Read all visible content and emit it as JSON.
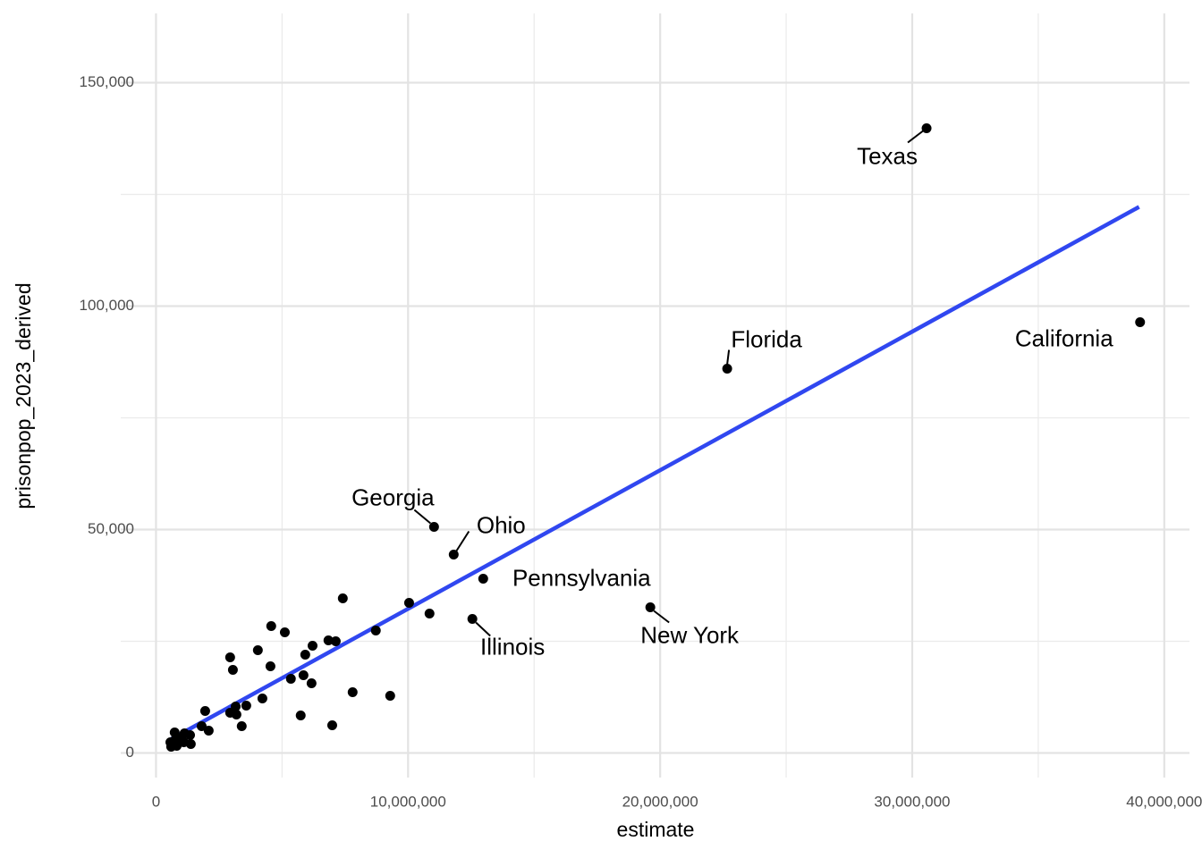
{
  "chart_data": {
    "type": "scatter",
    "x_label": "estimate",
    "y_label": "prisonpop_2023_derived",
    "color": "#000000",
    "x": [
      30570000,
      39040000,
      22660000,
      11030000,
      11810000,
      12980000,
      12550000,
      19610000,
      7410000,
      10040000,
      10850000,
      4570000,
      5110000,
      8720000,
      6840000,
      7130000,
      6210000,
      4040000,
      5920000,
      2940000,
      4540000,
      3050000,
      5850000,
      5350000,
      6170000,
      7800000,
      9290000,
      4220000,
      3580000,
      3160000,
      1950000,
      2940000,
      3190000,
      5740000,
      1810000,
      3400000,
      6990000,
      2090000,
      740000,
      1130000,
      1350000,
      990000,
      740000,
      570000,
      1100000,
      1380000,
      820000,
      600000,
      670000
    ],
    "y": [
      139800,
      96400,
      86000,
      50600,
      44400,
      39000,
      30000,
      32600,
      34600,
      33600,
      31200,
      28400,
      27000,
      27400,
      25200,
      25000,
      24000,
      23000,
      22000,
      21400,
      19400,
      18600,
      17400,
      16600,
      15600,
      13600,
      12800,
      12200,
      10600,
      10400,
      9400,
      9000,
      8600,
      8400,
      6000,
      6000,
      6200,
      5000,
      4600,
      4400,
      4000,
      3400,
      2800,
      2400,
      2400,
      2000,
      1600,
      1400,
      2000
    ],
    "labels": [
      "Texas",
      "California",
      "Florida",
      "Georgia",
      "Ohio",
      "Pennsylvania",
      "Illinois",
      "New York",
      null,
      null,
      null,
      null,
      null,
      null,
      null,
      null,
      null,
      null,
      null,
      null,
      null,
      null,
      null,
      null,
      null,
      null,
      null,
      null,
      null,
      null,
      null,
      null,
      null,
      null,
      null,
      null,
      null,
      null,
      null,
      null,
      null,
      null,
      null,
      null,
      null,
      null,
      null,
      null,
      null
    ],
    "trend": {
      "color": "#3047f0",
      "x": [
        500000,
        39000000
      ],
      "y": [
        2800,
        122200
      ]
    },
    "xlim": [
      -1400000,
      41000000
    ],
    "ylim": [
      -5500,
      165500
    ],
    "xticks": [
      0,
      {
        "value": 10000000,
        "label": "10,000,000"
      },
      {
        "value": 20000000,
        "label": "20,000,000"
      },
      {
        "value": 30000000,
        "label": "30,000,000"
      },
      {
        "value": 40000000,
        "label": "40,000,000"
      }
    ],
    "yticks": [
      0,
      {
        "value": 50000,
        "label": "50,000"
      },
      {
        "value": 100000,
        "label": "100,000"
      },
      {
        "value": 150000,
        "label": "150,000"
      }
    ],
    "x_minor_grid": [
      5000000,
      15000000,
      25000000,
      35000000
    ],
    "y_minor_grid": [
      25000,
      75000,
      125000
    ],
    "grid": true
  }
}
